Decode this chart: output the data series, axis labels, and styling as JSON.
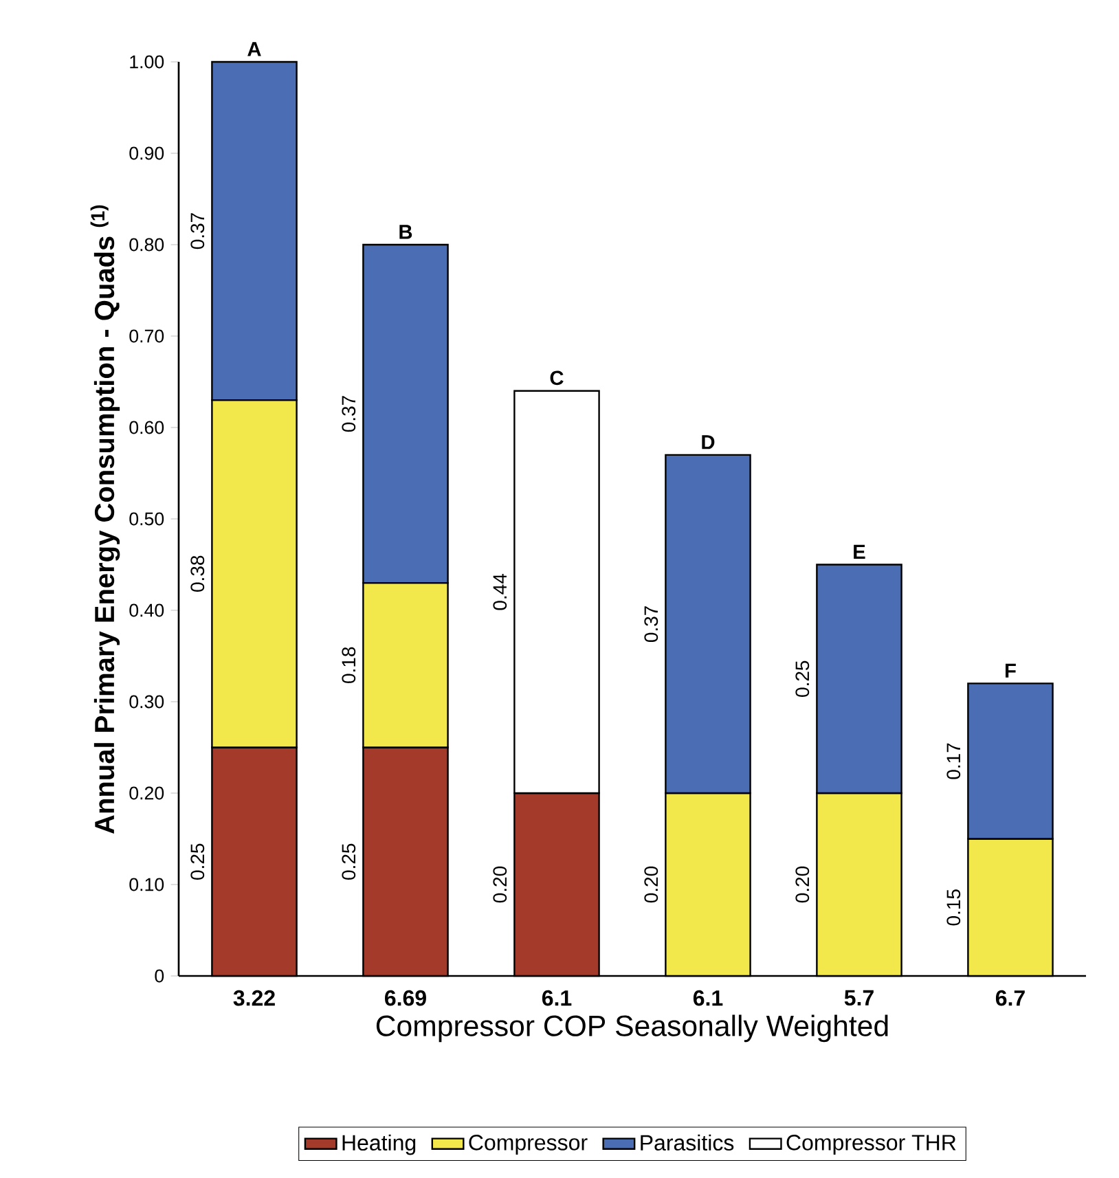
{
  "chart_data": {
    "type": "bar",
    "stacked": true,
    "categories": [
      "3.22",
      "6.69",
      "6.1",
      "6.1",
      "5.7",
      "6.7"
    ],
    "series": [
      {
        "name": "Heating",
        "color": "#a33a2a",
        "values": [
          0.25,
          0.25,
          0.2,
          null,
          null,
          null
        ],
        "value_labels": [
          "0.25",
          "0.25",
          "0.20",
          null,
          null,
          null
        ]
      },
      {
        "name": "Compressor",
        "color": "#f2e84b",
        "values": [
          0.38,
          0.18,
          null,
          0.2,
          0.2,
          0.15
        ],
        "value_labels": [
          "0.38",
          "0.18",
          null,
          "0.20",
          "0.20",
          "0.15"
        ]
      },
      {
        "name": "Parasitics",
        "color": "#4a6db3",
        "values": [
          0.37,
          0.37,
          null,
          0.37,
          0.25,
          0.17
        ],
        "value_labels": [
          "0.37",
          "0.37",
          null,
          "0.37",
          "0.25",
          "0.17"
        ]
      },
      {
        "name": "Compressor THR",
        "color": "#ffffff",
        "values": [
          null,
          null,
          0.44,
          null,
          null,
          null
        ],
        "value_labels": [
          null,
          null,
          "0.44",
          null,
          null,
          null
        ]
      }
    ],
    "xlabel": "Compressor COP Seasonally Weighted",
    "ylabel": "Annual Primary Energy Consumption - Quads $^{(1)}$",
    "ylim": [
      0,
      1.0
    ],
    "yticks": [
      {
        "value": 0,
        "label": "0"
      },
      {
        "value": 0.1,
        "label": "0.10"
      },
      {
        "value": 0.2,
        "label": "0.20"
      },
      {
        "value": 0.3,
        "label": "0.30"
      },
      {
        "value": 0.4,
        "label": "0.40"
      },
      {
        "value": 0.5,
        "label": "0.50"
      },
      {
        "value": 0.6,
        "label": "0.60"
      },
      {
        "value": 0.7,
        "label": "0.70"
      },
      {
        "value": 0.8,
        "label": "0.80"
      },
      {
        "value": 0.9,
        "label": "0.90"
      },
      {
        "value": 1.0,
        "label": "1.00"
      }
    ],
    "annotations": [
      "A",
      "B",
      "C",
      "D",
      "E",
      "F"
    ],
    "legend": "bottom"
  }
}
